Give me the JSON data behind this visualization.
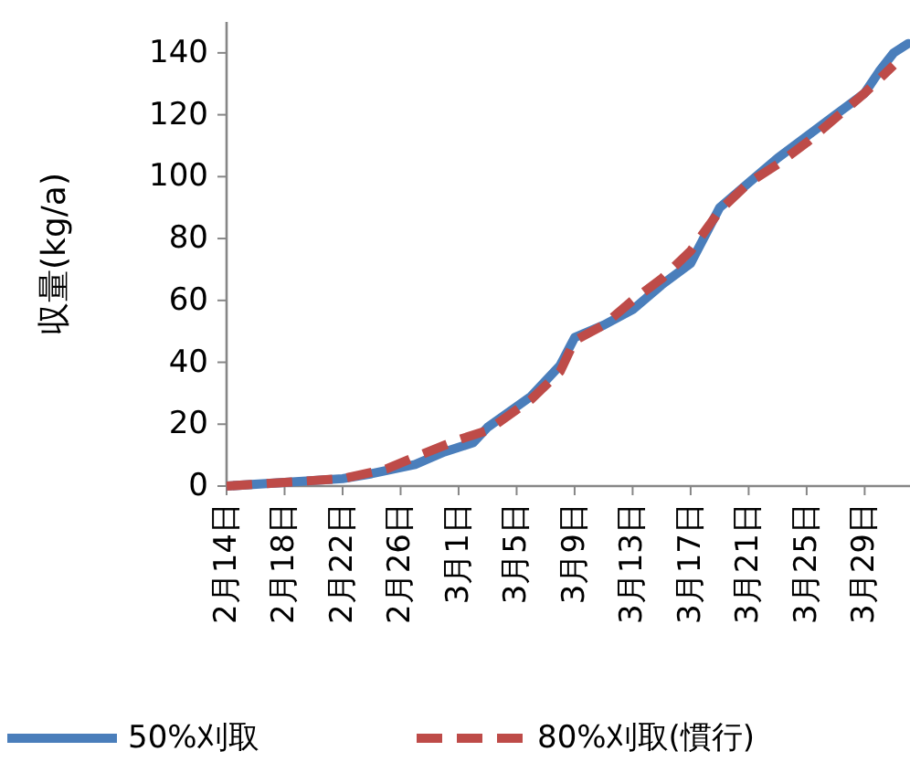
{
  "chart_data": {
    "type": "line",
    "ylabel": "収量(kg/a)",
    "legend": "bottom",
    "marker": "none",
    "grid": false,
    "xlim": [
      "--02-14",
      "--04-01"
    ],
    "ylim": [
      0,
      150
    ],
    "yticks": [
      0,
      20,
      40,
      60,
      80,
      100,
      120,
      140
    ],
    "xticks": [
      {
        "value": "--02-14",
        "label": "2月14日"
      },
      {
        "value": "--02-18",
        "label": "2月18日"
      },
      {
        "value": "--02-22",
        "label": "2月22日"
      },
      {
        "value": "--02-26",
        "label": "2月26日"
      },
      {
        "value": "--03-01",
        "label": "3月1日"
      },
      {
        "value": "--03-05",
        "label": "3月5日"
      },
      {
        "value": "--03-09",
        "label": "3月9日"
      },
      {
        "value": "--03-13",
        "label": "3月13日"
      },
      {
        "value": "--03-17",
        "label": "3月17日"
      },
      {
        "value": "--03-21",
        "label": "3月21日"
      },
      {
        "value": "--03-25",
        "label": "3月25日"
      },
      {
        "value": "--03-29",
        "label": "3月29日"
      }
    ],
    "series": [
      {
        "name": "50%刈取",
        "color": "#4a7ebb",
        "line_style": "solid",
        "x": [
          "--02-14",
          "--02-18",
          "--02-22",
          "--02-24",
          "--02-27",
          "--02-29",
          "--03-02",
          "--03-03",
          "--03-06",
          "--03-08",
          "--03-09",
          "--03-11",
          "--03-13",
          "--03-15",
          "--03-17",
          "--03-18",
          "--03-19",
          "--03-21",
          "--03-23",
          "--03-25",
          "--03-27",
          "--03-29",
          "--03-30",
          "--03-31",
          "--04-01"
        ],
        "values": [
          0,
          1.2,
          2.4,
          4,
          7,
          11,
          14,
          19,
          29,
          39,
          48,
          52,
          57,
          65,
          72,
          81,
          90,
          98,
          106,
          113,
          120,
          127,
          134,
          140,
          143
        ]
      },
      {
        "name": "80%刈取(慣行)",
        "color": "#be4b48",
        "line_style": "dashed",
        "x": [
          "--02-14",
          "--02-22",
          "--02-25",
          "--02-27",
          "--03-01",
          "--03-03",
          "--03-06",
          "--03-08",
          "--03-09",
          "--03-11",
          "--03-13",
          "--03-15",
          "--03-17",
          "--03-19",
          "--03-21",
          "--03-23",
          "--03-25",
          "--03-27",
          "--03-29",
          "--03-31"
        ],
        "values": [
          0,
          2.4,
          5.5,
          9.4,
          15,
          18,
          28,
          37,
          47,
          52,
          60,
          67,
          76,
          89,
          98,
          104,
          111,
          119,
          127,
          136
        ]
      }
    ]
  }
}
